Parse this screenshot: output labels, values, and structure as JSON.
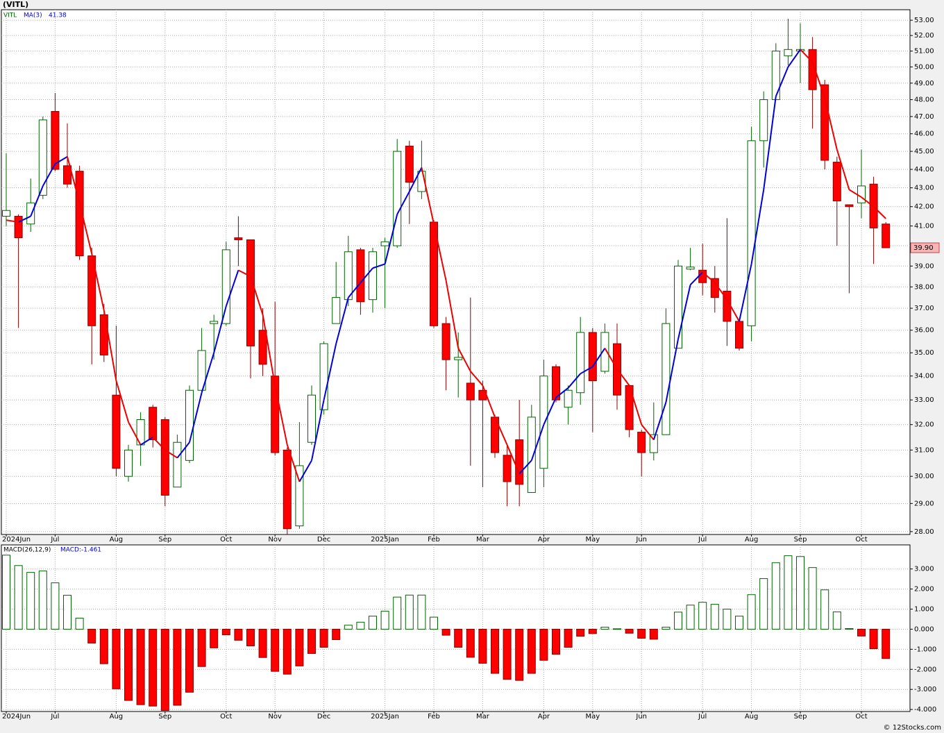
{
  "title": "(VITL)",
  "legend": [
    "VITL",
    "MA(3)",
    "41.38"
  ],
  "footer": "© 12Stocks.com",
  "chart_data": [
    {
      "type": "candlestick",
      "categories": [
        "2024Jun",
        null,
        null,
        null,
        "Jul",
        null,
        null,
        null,
        null,
        "Aug",
        null,
        null,
        null,
        "Sep",
        null,
        null,
        null,
        null,
        "Oct",
        null,
        null,
        null,
        "Nov",
        null,
        null,
        null,
        "Dec",
        null,
        null,
        null,
        null,
        "2025Jan",
        null,
        null,
        null,
        "Feb",
        null,
        null,
        null,
        "Mar",
        null,
        null,
        null,
        null,
        "Apr",
        null,
        null,
        null,
        "May",
        null,
        null,
        null,
        "Jun",
        null,
        null,
        null,
        null,
        "Jul",
        null,
        null,
        null,
        "Aug",
        null,
        null,
        null,
        "Sep",
        null,
        null,
        null,
        null,
        "Oct",
        null,
        null
      ],
      "open": [
        41.5,
        41.5,
        41.1,
        42.6,
        47.3,
        44.2,
        43.9,
        39.5,
        36.7,
        33.2,
        30.0,
        31.2,
        32.7,
        32.2,
        29.6,
        30.6,
        33.4,
        36.3,
        36.3,
        40.4,
        40.3,
        36.0,
        34.0,
        31.0,
        28.2,
        31.3,
        32.6,
        36.3,
        37.4,
        39.8,
        37.4,
        40.0,
        40.0,
        45.3,
        42.8,
        41.2,
        36.3,
        34.7,
        33.7,
        33.4,
        32.3,
        30.8,
        31.4,
        29.4,
        30.3,
        34.4,
        32.7,
        33.3,
        35.9,
        34.2,
        35.4,
        33.6,
        31.7,
        30.9,
        31.6,
        35.2,
        38.85,
        38.8,
        38.4,
        37.8,
        36.4,
        36.2,
        45.6,
        48.0,
        50.7,
        51.0,
        51.1,
        48.9,
        44.4,
        42.1,
        42.2,
        43.2,
        41.1
      ],
      "high": [
        44.9,
        41.6,
        43.5,
        47.0,
        48.4,
        46.6,
        44.2,
        39.9,
        37.2,
        36.2,
        31.2,
        32.5,
        32.8,
        32.3,
        31.6,
        33.6,
        36.1,
        36.7,
        40.2,
        41.5,
        40.3,
        37.0,
        37.3,
        31.1,
        32.1,
        33.6,
        35.5,
        39.2,
        40.5,
        39.9,
        39.9,
        40.4,
        45.7,
        45.6,
        45.6,
        41.3,
        36.6,
        35.9,
        37.5,
        33.8,
        32.4,
        31.2,
        33.0,
        32.8,
        34.7,
        34.5,
        33.6,
        36.6,
        36.1,
        36.3,
        36.3,
        33.6,
        31.8,
        32.9,
        37.0,
        39.3,
        39.9,
        40.1,
        39.0,
        41.4,
        36.5,
        46.4,
        48.5,
        51.5,
        53.1,
        52.8,
        51.9,
        49.2,
        44.7,
        42.1,
        45.1,
        43.6,
        41.2
      ],
      "low": [
        41.0,
        36.1,
        40.7,
        42.4,
        43.9,
        43.0,
        39.3,
        34.5,
        34.6,
        30.0,
        29.8,
        30.4,
        31.1,
        28.9,
        29.6,
        30.5,
        33.3,
        34.7,
        36.2,
        39.0,
        33.9,
        34.0,
        30.8,
        27.9,
        28.1,
        31.2,
        32.4,
        36.3,
        37.1,
        36.7,
        36.8,
        37.0,
        39.9,
        41.1,
        42.4,
        36.1,
        33.4,
        33.1,
        30.4,
        29.6,
        30.7,
        28.9,
        28.9,
        29.4,
        29.6,
        32.9,
        32.0,
        32.8,
        31.7,
        34.1,
        32.6,
        31.5,
        30.0,
        30.6,
        31.6,
        35.2,
        38.8,
        37.6,
        36.8,
        35.3,
        35.1,
        35.5,
        44.1,
        48.0,
        50.1,
        49.0,
        46.3,
        44.0,
        40.0,
        37.7,
        41.4,
        39.1,
        39.9
      ],
      "close": [
        41.8,
        40.4,
        42.2,
        46.8,
        44.0,
        43.2,
        39.5,
        36.2,
        34.9,
        30.3,
        31.0,
        32.2,
        31.4,
        29.3,
        31.3,
        33.4,
        35.1,
        36.4,
        39.8,
        40.3,
        35.3,
        34.5,
        30.9,
        28.1,
        30.4,
        33.2,
        35.4,
        37.5,
        39.7,
        37.3,
        39.7,
        40.2,
        45.0,
        43.3,
        43.9,
        36.2,
        34.7,
        34.8,
        33.0,
        33.0,
        30.9,
        29.8,
        29.7,
        32.3,
        34.0,
        33.0,
        33.4,
        35.9,
        33.8,
        35.9,
        33.2,
        31.8,
        30.9,
        31.6,
        36.3,
        39.0,
        38.95,
        38.2,
        37.5,
        36.4,
        35.2,
        45.6,
        48.0,
        51.0,
        51.1,
        51.1,
        48.6,
        44.5,
        42.3,
        42.0,
        43.1,
        40.9,
        39.9
      ],
      "up_color": "#006400",
      "down_color": "#ff0000",
      "series": [
        {
          "name": "MA(3)",
          "up_color": "#0000dd",
          "down_color": "#ee0000",
          "values": [
            41.3,
            41.2,
            41.5,
            43.1,
            44.3,
            44.7,
            42.2,
            39.6,
            36.9,
            33.8,
            32.1,
            31.2,
            31.5,
            31.0,
            30.7,
            31.3,
            33.3,
            35.0,
            37.1,
            38.8,
            38.5,
            36.7,
            33.6,
            31.2,
            29.8,
            30.6,
            33.0,
            35.4,
            37.5,
            38.2,
            38.9,
            39.1,
            41.6,
            42.8,
            44.1,
            41.1,
            38.3,
            35.2,
            34.2,
            33.6,
            32.3,
            31.2,
            30.1,
            30.6,
            32.0,
            33.1,
            33.5,
            34.1,
            34.4,
            35.2,
            34.3,
            33.6,
            32.0,
            31.4,
            32.9,
            35.6,
            38.1,
            38.7,
            38.2,
            37.4,
            36.4,
            39.1,
            42.9,
            48.2,
            50.0,
            51.1,
            50.3,
            48.1,
            45.1,
            42.9,
            42.5,
            42.0,
            41.38
          ]
        }
      ],
      "last_price": {
        "value": 39.9,
        "label": "39.90"
      },
      "log_scale": true,
      "grid": true,
      "ylim": [
        27.9,
        53.7
      ],
      "yticks": [
        {
          "value": 28,
          "label": "28.00"
        },
        {
          "value": 29,
          "label": "29.00"
        },
        {
          "value": 30,
          "label": "30.00"
        },
        {
          "value": 31,
          "label": "31.00"
        },
        {
          "value": 32,
          "label": "32.00"
        },
        {
          "value": 33,
          "label": "33.00"
        },
        {
          "value": 34,
          "label": "34.00"
        },
        {
          "value": 35,
          "label": "35.00"
        },
        {
          "value": 36,
          "label": "36.00"
        },
        {
          "value": 37,
          "label": "37.00"
        },
        {
          "value": 38,
          "label": "38.00"
        },
        {
          "value": 39,
          "label": "39.00"
        },
        {
          "value": 40,
          "label": "40.00"
        },
        {
          "value": 41,
          "label": "41.00"
        },
        {
          "value": 42,
          "label": "42.00"
        },
        {
          "value": 43,
          "label": "43.00"
        },
        {
          "value": 44,
          "label": "44.00"
        },
        {
          "value": 45,
          "label": "45.00"
        },
        {
          "value": 46,
          "label": "46.00"
        },
        {
          "value": 47,
          "label": "47.00"
        },
        {
          "value": 48,
          "label": "48.00"
        },
        {
          "value": 49,
          "label": "49.00"
        },
        {
          "value": 50,
          "label": "50.00"
        },
        {
          "value": 51,
          "label": "51.00"
        },
        {
          "value": 52,
          "label": "52.00"
        },
        {
          "value": 53,
          "label": "53.00"
        }
      ]
    },
    {
      "type": "bar",
      "legend": [
        "MACD(26,12,9)",
        "MACD:-1.461"
      ],
      "categories": [
        "2024Jun",
        null,
        null,
        null,
        "Jul",
        null,
        null,
        null,
        null,
        "Aug",
        null,
        null,
        null,
        "Sep",
        null,
        null,
        null,
        null,
        "Oct",
        null,
        null,
        null,
        "Nov",
        null,
        null,
        null,
        "Dec",
        null,
        null,
        null,
        null,
        "2025Jan",
        null,
        null,
        null,
        "Feb",
        null,
        null,
        null,
        "Mar",
        null,
        null,
        null,
        null,
        "Apr",
        null,
        null,
        null,
        "May",
        null,
        null,
        null,
        "Jun",
        null,
        null,
        null,
        null,
        "Jul",
        null,
        null,
        null,
        "Aug",
        null,
        null,
        null,
        "Sep",
        null,
        null,
        null,
        null,
        "Oct",
        null,
        null
      ],
      "values": [
        3.69,
        3.17,
        2.83,
        2.9,
        2.31,
        1.69,
        0.55,
        -0.69,
        -1.72,
        -2.97,
        -3.55,
        -3.76,
        -3.83,
        -4.05,
        -3.79,
        -3.14,
        -1.86,
        -0.93,
        -0.28,
        -0.55,
        -0.83,
        -1.41,
        -2.1,
        -2.24,
        -1.83,
        -1.21,
        -0.9,
        -0.52,
        0.2,
        0.35,
        0.65,
        0.9,
        1.6,
        1.7,
        1.7,
        0.6,
        -0.3,
        -0.9,
        -1.4,
        -1.7,
        -2.2,
        -2.5,
        -2.55,
        -2.2,
        -1.55,
        -1.25,
        -0.9,
        -0.35,
        -0.22,
        0.1,
        0.02,
        -0.2,
        -0.45,
        -0.5,
        0.1,
        0.85,
        1.2,
        1.34,
        1.24,
        1.0,
        0.65,
        1.72,
        2.52,
        3.31,
        3.66,
        3.62,
        3.07,
        1.96,
        0.86,
        0.03,
        -0.34,
        -0.97,
        -1.461
      ],
      "up_color": "#006400",
      "down_color": "#ff0000",
      "grid": true,
      "ylim": [
        -4.1,
        4.2
      ],
      "yticks": [
        {
          "value": -4,
          "label": "-4.000"
        },
        {
          "value": -3,
          "label": "-3.000"
        },
        {
          "value": -2,
          "label": "-2.000"
        },
        {
          "value": -1,
          "label": "-1.000"
        },
        {
          "value": 0,
          "label": "0.000"
        },
        {
          "value": 1,
          "label": "1.000"
        },
        {
          "value": 2,
          "label": "2.000"
        },
        {
          "value": 3,
          "label": "3.000"
        }
      ]
    }
  ]
}
